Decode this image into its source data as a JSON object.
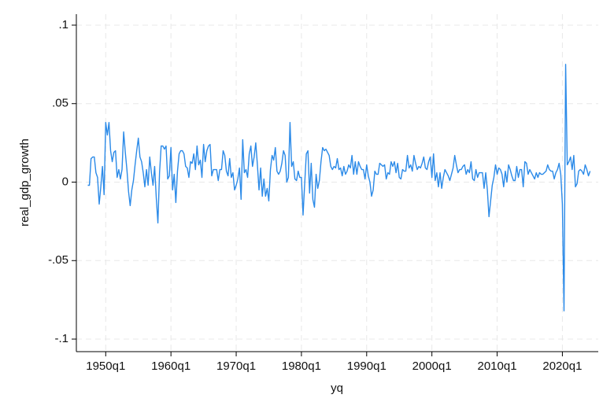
{
  "chart_data": {
    "type": "line",
    "x_label": "yq",
    "y_label": "real_gdp_growth",
    "x": [
      "1947q2",
      "1947q3",
      "1947q4",
      "1948q1",
      "1948q2",
      "1948q3",
      "1948q4",
      "1949q1",
      "1949q2",
      "1949q3",
      "1949q4",
      "1950q1",
      "1950q2",
      "1950q3",
      "1950q4",
      "1951q1",
      "1951q2",
      "1951q3",
      "1951q4",
      "1952q1",
      "1952q2",
      "1952q3",
      "1952q4",
      "1953q1",
      "1953q2",
      "1953q3",
      "1953q4",
      "1954q1",
      "1954q2",
      "1954q3",
      "1954q4",
      "1955q1",
      "1955q2",
      "1955q3",
      "1955q4",
      "1956q1",
      "1956q2",
      "1956q3",
      "1956q4",
      "1957q1",
      "1957q2",
      "1957q3",
      "1957q4",
      "1958q1",
      "1958q2",
      "1958q3",
      "1958q4",
      "1959q1",
      "1959q2",
      "1959q3",
      "1959q4",
      "1960q1",
      "1960q2",
      "1960q3",
      "1960q4",
      "1961q1",
      "1961q2",
      "1961q3",
      "1961q4",
      "1962q1",
      "1962q2",
      "1962q3",
      "1962q4",
      "1963q1",
      "1963q2",
      "1963q3",
      "1963q4",
      "1964q1",
      "1964q2",
      "1964q3",
      "1964q4",
      "1965q1",
      "1965q2",
      "1965q3",
      "1965q4",
      "1966q1",
      "1966q2",
      "1966q3",
      "1966q4",
      "1967q1",
      "1967q2",
      "1967q3",
      "1967q4",
      "1968q1",
      "1968q2",
      "1968q3",
      "1968q4",
      "1969q1",
      "1969q2",
      "1969q3",
      "1969q4",
      "1970q1",
      "1970q2",
      "1970q3",
      "1970q4",
      "1971q1",
      "1971q2",
      "1971q3",
      "1971q4",
      "1972q1",
      "1972q2",
      "1972q3",
      "1972q4",
      "1973q1",
      "1973q2",
      "1973q3",
      "1973q4",
      "1974q1",
      "1974q2",
      "1974q3",
      "1974q4",
      "1975q1",
      "1975q2",
      "1975q3",
      "1975q4",
      "1976q1",
      "1976q2",
      "1976q3",
      "1976q4",
      "1977q1",
      "1977q2",
      "1977q3",
      "1977q4",
      "1978q1",
      "1978q2",
      "1978q3",
      "1978q4",
      "1979q1",
      "1979q2",
      "1979q3",
      "1979q4",
      "1980q1",
      "1980q2",
      "1980q3",
      "1980q4",
      "1981q1",
      "1981q2",
      "1981q3",
      "1981q4",
      "1982q1",
      "1982q2",
      "1982q3",
      "1982q4",
      "1983q1",
      "1983q2",
      "1983q3",
      "1983q4",
      "1984q1",
      "1984q2",
      "1984q3",
      "1984q4",
      "1985q1",
      "1985q2",
      "1985q3",
      "1985q4",
      "1986q1",
      "1986q2",
      "1986q3",
      "1986q4",
      "1987q1",
      "1987q2",
      "1987q3",
      "1987q4",
      "1988q1",
      "1988q2",
      "1988q3",
      "1988q4",
      "1989q1",
      "1989q2",
      "1989q3",
      "1989q4",
      "1990q1",
      "1990q2",
      "1990q3",
      "1990q4",
      "1991q1",
      "1991q2",
      "1991q3",
      "1991q4",
      "1992q1",
      "1992q2",
      "1992q3",
      "1992q4",
      "1993q1",
      "1993q2",
      "1993q3",
      "1993q4",
      "1994q1",
      "1994q2",
      "1994q3",
      "1994q4",
      "1995q1",
      "1995q2",
      "1995q3",
      "1995q4",
      "1996q1",
      "1996q2",
      "1996q3",
      "1996q4",
      "1997q1",
      "1997q2",
      "1997q3",
      "1997q4",
      "1998q1",
      "1998q2",
      "1998q3",
      "1998q4",
      "1999q1",
      "1999q2",
      "1999q3",
      "1999q4",
      "2000q1",
      "2000q2",
      "2000q3",
      "2000q4",
      "2001q1",
      "2001q2",
      "2001q3",
      "2001q4",
      "2002q1",
      "2002q2",
      "2002q3",
      "2002q4",
      "2003q1",
      "2003q2",
      "2003q3",
      "2003q4",
      "2004q1",
      "2004q2",
      "2004q3",
      "2004q4",
      "2005q1",
      "2005q2",
      "2005q3",
      "2005q4",
      "2006q1",
      "2006q2",
      "2006q3",
      "2006q4",
      "2007q1",
      "2007q2",
      "2007q3",
      "2007q4",
      "2008q1",
      "2008q2",
      "2008q3",
      "2008q4",
      "2009q1",
      "2009q2",
      "2009q3",
      "2009q4",
      "2010q1",
      "2010q2",
      "2010q3",
      "2010q4",
      "2011q1",
      "2011q2",
      "2011q3",
      "2011q4",
      "2012q1",
      "2012q2",
      "2012q3",
      "2012q4",
      "2013q1",
      "2013q2",
      "2013q3",
      "2013q4",
      "2014q1",
      "2014q2",
      "2014q3",
      "2014q4",
      "2015q1",
      "2015q2",
      "2015q3",
      "2015q4",
      "2016q1",
      "2016q2",
      "2016q3",
      "2016q4",
      "2017q1",
      "2017q2",
      "2017q3",
      "2017q4",
      "2018q1",
      "2018q2",
      "2018q3",
      "2018q4",
      "2019q1",
      "2019q2",
      "2019q3",
      "2019q4",
      "2020q1",
      "2020q2",
      "2020q3",
      "2020q4",
      "2021q1",
      "2021q2",
      "2021q3",
      "2021q4",
      "2022q1",
      "2022q2",
      "2022q3",
      "2022q4",
      "2023q1",
      "2023q2",
      "2023q3",
      "2023q4",
      "2024q1",
      "2024q2"
    ],
    "series": [
      {
        "name": "real_gdp_growth",
        "color": "#2b8ae8",
        "values": [
          -0.002,
          -0.002,
          0.015,
          0.016,
          0.016,
          0.006,
          0.003,
          -0.014,
          -0.003,
          0.01,
          -0.008,
          0.038,
          0.03,
          0.038,
          0.02,
          0.013,
          0.019,
          0.02,
          0.003,
          0.008,
          0.002,
          0.008,
          0.032,
          0.019,
          0.008,
          -0.006,
          -0.015,
          -0.005,
          0.001,
          0.011,
          0.02,
          0.028,
          0.016,
          0.013,
          0.006,
          -0.003,
          0.008,
          -0.002,
          0.016,
          0.006,
          -0.002,
          0.01,
          -0.01,
          -0.026,
          0.006,
          0.023,
          0.023,
          0.021,
          0.023,
          0.002,
          0.004,
          0.022,
          -0.005,
          0.005,
          -0.013,
          0.007,
          0.018,
          0.02,
          0.02,
          0.018,
          0.01,
          0.009,
          0.003,
          0.013,
          0.012,
          0.018,
          0.008,
          0.023,
          0.011,
          0.014,
          0.003,
          0.024,
          0.013,
          0.02,
          0.023,
          0.024,
          0.004,
          0.008,
          0.008,
          0.008,
          0.001,
          0.008,
          0.008,
          0.02,
          0.017,
          0.007,
          0.004,
          0.015,
          0.003,
          0.006,
          -0.005,
          -0.002,
          0.002,
          0.009,
          -0.011,
          0.027,
          0.006,
          0.008,
          0.003,
          0.018,
          0.023,
          0.01,
          0.016,
          0.025,
          0.011,
          -0.005,
          0.009,
          -0.009,
          0.002,
          -0.009,
          -0.004,
          -0.012,
          0.008,
          0.017,
          0.014,
          0.022,
          0.007,
          0.005,
          0.007,
          0.012,
          0.02,
          0.017,
          0.0,
          0.003,
          0.038,
          0.01,
          0.013,
          0.002,
          0.001,
          0.007,
          0.003,
          0.003,
          -0.021,
          -0.001,
          0.018,
          0.02,
          -0.007,
          0.012,
          -0.011,
          -0.016,
          0.005,
          -0.004,
          0.001,
          0.013,
          0.022,
          0.02,
          0.021,
          0.019,
          0.017,
          0.01,
          0.008,
          0.01,
          0.009,
          0.015,
          0.008,
          0.009,
          0.004,
          0.01,
          0.005,
          0.007,
          0.011,
          0.009,
          0.017,
          0.005,
          0.013,
          0.005,
          0.013,
          0.01,
          0.008,
          0.008,
          0.002,
          0.011,
          0.004,
          0.0,
          -0.009,
          -0.005,
          0.007,
          0.005,
          0.005,
          0.012,
          0.011,
          0.01,
          0.011,
          0.002,
          0.006,
          0.005,
          0.013,
          0.01,
          0.013,
          0.006,
          0.012,
          0.003,
          0.002,
          0.008,
          0.007,
          0.007,
          0.017,
          0.009,
          0.011,
          0.007,
          0.017,
          0.012,
          0.008,
          0.01,
          0.009,
          0.012,
          0.016,
          0.009,
          0.008,
          0.013,
          0.016,
          0.003,
          0.018,
          0.001,
          0.006,
          -0.003,
          0.006,
          -0.004,
          0.003,
          0.008,
          0.006,
          0.004,
          0.001,
          0.005,
          0.009,
          0.017,
          0.011,
          0.006,
          0.008,
          0.008,
          0.01,
          0.011,
          0.005,
          0.008,
          0.006,
          0.013,
          0.002,
          0.001,
          0.008,
          0.003,
          0.006,
          0.006,
          0.006,
          -0.004,
          0.006,
          -0.005,
          -0.022,
          -0.012,
          -0.002,
          0.003,
          0.011,
          0.005,
          0.009,
          0.008,
          0.005,
          -0.003,
          0.007,
          0.0,
          0.011,
          0.008,
          0.004,
          0.001,
          0.001,
          0.01,
          0.003,
          0.008,
          0.008,
          -0.003,
          0.013,
          0.012,
          0.005,
          0.008,
          0.006,
          0.004,
          0.002,
          0.006,
          0.003,
          0.006,
          0.005,
          0.005,
          0.006,
          0.007,
          0.011,
          0.008,
          0.007,
          0.007,
          0.002,
          0.006,
          0.008,
          0.012,
          0.005,
          -0.014,
          -0.082,
          0.075,
          0.011,
          0.013,
          0.016,
          0.008,
          0.017,
          -0.003,
          -0.001,
          0.007,
          0.008,
          0.007,
          0.005,
          0.011,
          0.008,
          0.004,
          0.007
        ]
      }
    ],
    "xlim": [
      "1945q3",
      "2025q3"
    ],
    "xticks": [
      "1950q1",
      "1960q1",
      "1970q1",
      "1980q1",
      "1990q1",
      "2000q1",
      "2010q1",
      "2020q1"
    ],
    "ylim": [
      -0.108,
      0.107
    ],
    "yticks": [
      {
        "value": -0.1,
        "label": "-.1"
      },
      {
        "value": -0.05,
        "label": "-.05"
      },
      0,
      {
        "value": 0.05,
        "label": ".05"
      },
      {
        "value": 0.1,
        "label": ".1"
      }
    ],
    "grid": true
  }
}
